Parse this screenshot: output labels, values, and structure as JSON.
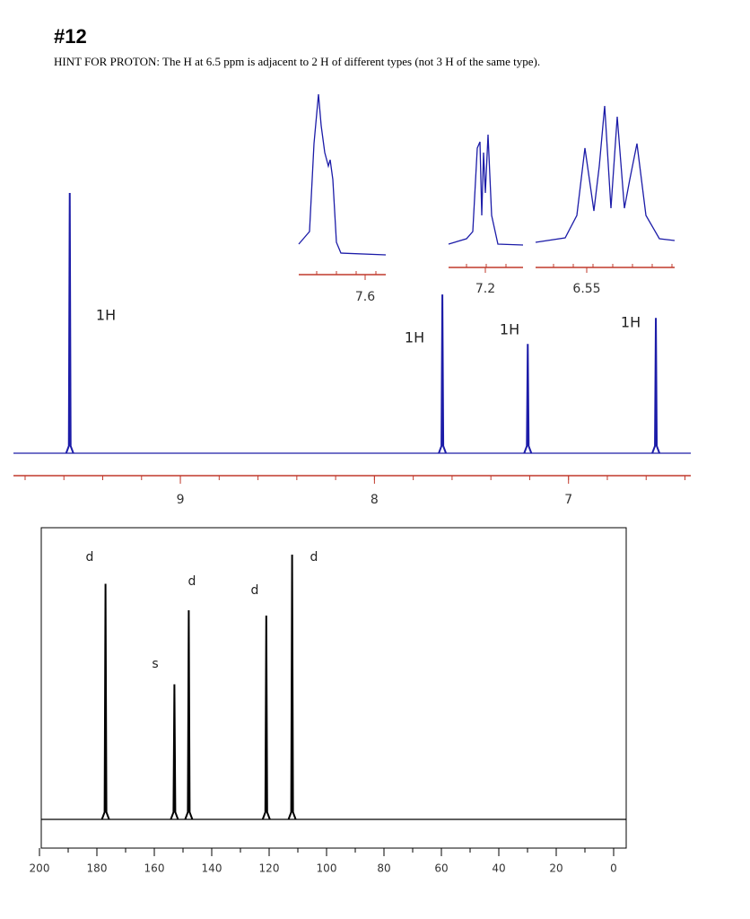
{
  "header": {
    "title": "#12",
    "hint": "HINT FOR PROTON: The H at 6.5 ppm is adjacent to 2 H of different types (not 3 H of the same type)."
  },
  "chart_data": [
    {
      "type": "spectrum",
      "color": "#1c1ca8",
      "axis_color": "#c0392b",
      "x": [
        9.57,
        7.65,
        7.21,
        6.55
      ],
      "values": [
        100,
        61,
        42,
        52
      ],
      "peak_labels": [
        "1H",
        "1H",
        "1H",
        "1H"
      ],
      "xlim": [
        9.86,
        6.37
      ],
      "ylim": [
        0,
        100
      ],
      "xticks": [
        9,
        8,
        7
      ],
      "insets": [
        {
          "xticks": [
            7.6
          ]
        },
        {
          "xticks": [
            7.2
          ]
        },
        {
          "xticks": [
            6.55
          ]
        }
      ]
    },
    {
      "type": "spectrum",
      "color": "#000000",
      "axis_color": "#000000",
      "frame": true,
      "x": [
        177,
        153,
        148,
        121,
        112
      ],
      "values": [
        89,
        51,
        79,
        77,
        100
      ],
      "peak_labels": [
        "d",
        "s",
        "d",
        "d",
        "d"
      ],
      "xlim": [
        200,
        -5
      ],
      "ylim": [
        0,
        100
      ],
      "xticks": [
        200,
        180,
        160,
        140,
        120,
        100,
        80,
        60,
        40,
        20,
        0
      ]
    }
  ]
}
